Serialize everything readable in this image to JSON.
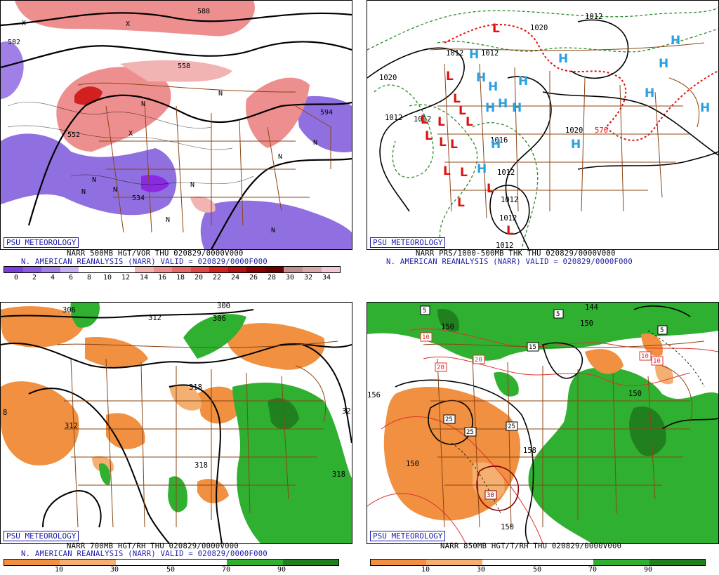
{
  "panels": {
    "p500": {
      "badge": "PSU METEOROLOGY",
      "line1": "NARR 500MB HGT/VOR THU 020829/0000V000",
      "line2": "N. AMERICAN REANALYSIS (NARR) VALID = 020829/0000F000",
      "scale_colors": [
        "#7a3fd8",
        "#8a5ce0",
        "#a07fe6",
        "#c4b2f0",
        "#ffffff",
        "#ffffff",
        "#ffffff",
        "#f2b3b3",
        "#ee8f8f",
        "#e86a6a",
        "#e04848",
        "#d02020",
        "#b01010",
        "#8a0000",
        "#6a0000",
        "#c09090",
        "#d8a8a8",
        "#f0c8d8"
      ],
      "scale_labels": [
        "0",
        "2",
        "4",
        "6",
        "8",
        "10",
        "12",
        "14",
        "16",
        "18",
        "20",
        "22",
        "24",
        "26",
        "28",
        "30",
        "32",
        "34"
      ],
      "contour_labels": [
        "582",
        "594",
        "552",
        "558",
        "534",
        "588",
        "N",
        "N",
        "N",
        "N",
        "N",
        "N",
        "N",
        "N",
        "N",
        "N",
        "X",
        "X",
        "X"
      ]
    },
    "pthk": {
      "badge": "PSU METEOROLOGY",
      "line1": "NARR PRS/1000-500MB THK THU 020829/0000V000",
      "line2": "N. AMERICAN REANALYSIS (NARR) VALID = 020829/0000F000",
      "contour_labels": [
        "1012",
        "1012",
        "1020",
        "1012",
        "1020",
        "1012",
        "1012",
        "1012",
        "1020",
        "570",
        "1012",
        "1016",
        "1012",
        "1012"
      ],
      "highs": [
        "H",
        "H",
        "H",
        "H",
        "H",
        "H",
        "H",
        "H",
        "H",
        "H",
        "H",
        "H",
        "H",
        "H",
        "H"
      ],
      "lows": [
        "L",
        "L",
        "L",
        "L",
        "L",
        "L",
        "L",
        "L",
        "L",
        "L",
        "L",
        "L",
        "L",
        "L",
        "L"
      ]
    },
    "p700": {
      "badge": "PSU METEOROLOGY",
      "line1": "NARR 700MB HGT/RH THU 020829/0000V000",
      "line2": "N. AMERICAN REANALYSIS (NARR) VALID = 020829/0000F000",
      "scale_colors": [
        "#f09040",
        "#f4b070",
        "#ffffff",
        "#ffffff",
        "#30b030",
        "#208020"
      ],
      "scale_labels": [
        "10",
        "30",
        "50",
        "70",
        "90"
      ],
      "contour_labels": [
        "306",
        "300",
        "312",
        "306",
        "318",
        "312",
        "318",
        "318",
        "32",
        "8"
      ]
    },
    "p850": {
      "badge": "PSU METEOROLOGY",
      "line1": "NARR 850MB HGT/T/RH THU 020829/0000V000",
      "scale_colors": [
        "#f09040",
        "#f4b070",
        "#ffffff",
        "#ffffff",
        "#30b030",
        "#208020"
      ],
      "scale_labels": [
        "10",
        "30",
        "50",
        "70",
        "90"
      ],
      "contour_labels": [
        "150",
        "156",
        "150",
        "158",
        "150",
        "150",
        "144",
        "150"
      ],
      "temp_labels": [
        "5",
        "10",
        "20",
        "20",
        "5",
        "15",
        "10",
        "10",
        "5",
        "25",
        "25",
        "25",
        "30"
      ]
    }
  },
  "colors": {
    "border_states": "#8b4513",
    "contour": "#000000",
    "badge": "#1a1aa8",
    "high": "#2aa0e0",
    "low": "#e01010",
    "thickness": "#2a8a2a",
    "thickness_570": "#e01010",
    "temp_contour": "#e03030",
    "temp_30": "#8a0000"
  }
}
